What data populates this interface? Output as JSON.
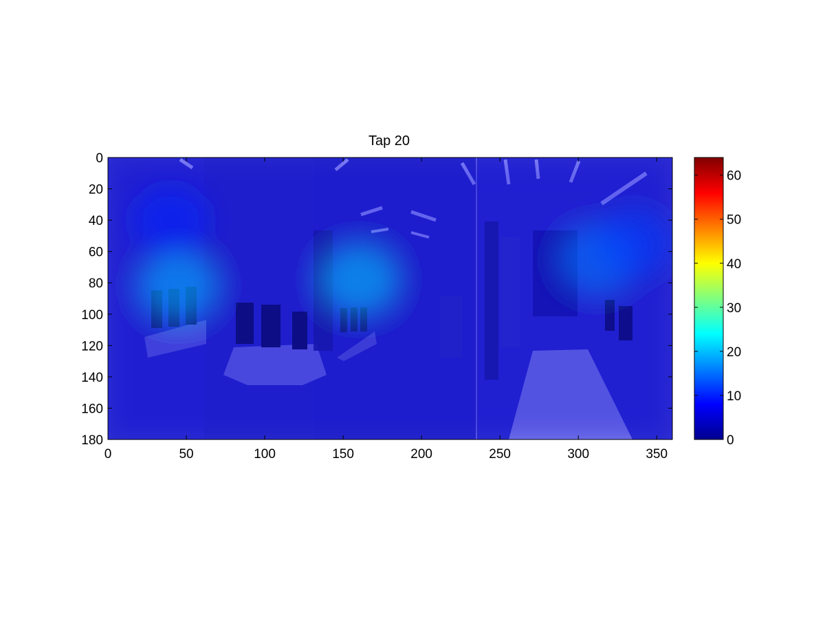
{
  "chart_data": {
    "type": "heatmap",
    "title": "Tap 20",
    "xlabel": "",
    "ylabel": "",
    "xlim": [
      0,
      360
    ],
    "ylim": [
      0,
      180
    ],
    "y_direction": "reversed",
    "xticks": [
      0,
      50,
      100,
      150,
      200,
      250,
      300,
      350
    ],
    "yticks": [
      0,
      20,
      40,
      60,
      80,
      100,
      120,
      140,
      160,
      180
    ],
    "colormap": "jet",
    "colorbar": {
      "range": [
        0,
        64
      ],
      "ticks": [
        0,
        10,
        20,
        30,
        40,
        50,
        60
      ]
    },
    "background": "panoramic indoor room photograph overlaid by heatmap",
    "hotspots": [
      {
        "x": 45,
        "y": 82,
        "value": 20
      },
      {
        "x": 160,
        "y": 78,
        "value": 21
      },
      {
        "x": 312,
        "y": 65,
        "value": 16
      },
      {
        "x": 335,
        "y": 55,
        "value": 12
      },
      {
        "x": 40,
        "y": 40,
        "value": 10
      }
    ],
    "baseline_value": 5
  }
}
